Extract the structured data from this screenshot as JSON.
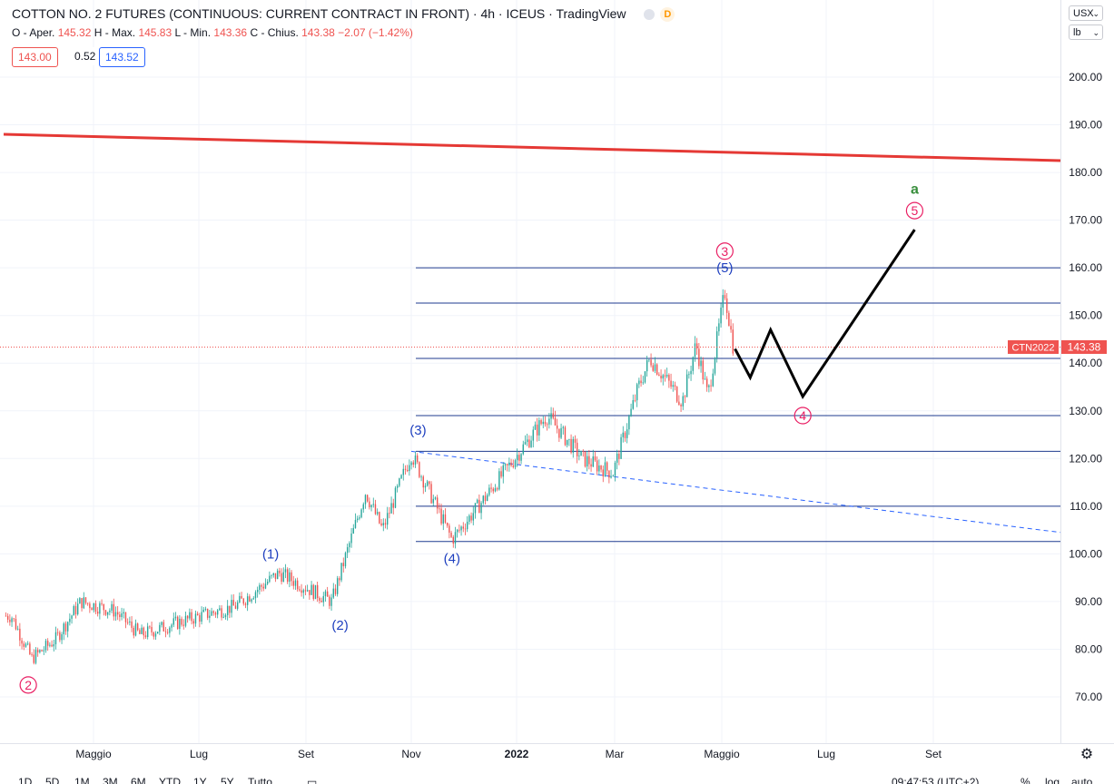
{
  "header": {
    "title": "COTTON NO. 2 FUTURES (CONTINUOUS: CURRENT CONTRACT IN FRONT)",
    "interval": "4h",
    "exchange": "ICEUS",
    "source": "TradingView",
    "badge": "D",
    "sep": "·"
  },
  "ohlc": {
    "o_label": "O - Aper.",
    "o": "145.32",
    "h_label": "H - Max.",
    "h": "145.83",
    "l_label": "L - Min.",
    "l": "143.36",
    "c_label": "C - Chius.",
    "c": "143.38",
    "change": "−2.07 (−1.42%)"
  },
  "quote": {
    "bid": "143.00",
    "spread": "0.52",
    "ask": "143.52"
  },
  "selectors": {
    "currency": "USX",
    "unit": "lb"
  },
  "price_axis": {
    "ticks": [
      "200.00",
      "190.00",
      "180.00",
      "170.00",
      "160.00",
      "150.00",
      "140.00",
      "130.00",
      "120.00",
      "110.00",
      "100.00",
      "90.00",
      "80.00",
      "70.00"
    ]
  },
  "price_label": {
    "symbol": "CTN2022",
    "value": "143.38"
  },
  "time_axis": {
    "ticks": [
      "Maggio",
      "Lug",
      "Set",
      "Nov",
      "2022",
      "Mar",
      "Maggio",
      "Lug",
      "Set"
    ]
  },
  "bottom_bar": {
    "ranges": [
      "1D",
      "5D",
      "1M",
      "3M",
      "6M",
      "YTD",
      "1Y",
      "5Y",
      "Tutto"
    ],
    "clock": "09:47:53 (UTC+2)",
    "pct": "%",
    "log": "log",
    "auto": "auto"
  },
  "colors": {
    "up": "#26a69a",
    "down": "#ef5350",
    "wave_blue": "#1e3fbf",
    "wave_pink": "#e91e63",
    "wave_green": "#388e3c",
    "ma": "#e53935",
    "fib": "#1f3b8f"
  },
  "chart_data": {
    "type": "candlestick",
    "ylim": [
      60,
      210
    ],
    "price_axis_scale": "linear",
    "grid": true,
    "last_price": 143.38,
    "key_points": [
      {
        "date": "2021-03-10",
        "price": 87
      },
      {
        "date": "2021-03-22",
        "price": 78
      },
      {
        "date": "2021-04-05",
        "price": 82
      },
      {
        "date": "2021-04-20",
        "price": 90
      },
      {
        "date": "2021-05-10",
        "price": 88
      },
      {
        "date": "2021-05-25",
        "price": 83
      },
      {
        "date": "2021-06-20",
        "price": 86
      },
      {
        "date": "2021-07-20",
        "price": 89
      },
      {
        "date": "2021-08-15",
        "price": 96
      },
      {
        "date": "2021-09-15",
        "price": 90
      },
      {
        "date": "2021-10-05",
        "price": 113
      },
      {
        "date": "2021-10-15",
        "price": 105
      },
      {
        "date": "2021-11-01",
        "price": 121
      },
      {
        "date": "2021-11-25",
        "price": 103
      },
      {
        "date": "2021-12-15",
        "price": 112
      },
      {
        "date": "2022-01-20",
        "price": 129
      },
      {
        "date": "2022-02-10",
        "price": 120
      },
      {
        "date": "2022-02-28",
        "price": 117
      },
      {
        "date": "2022-03-15",
        "price": 135
      },
      {
        "date": "2022-03-22",
        "price": 141
      },
      {
        "date": "2022-04-10",
        "price": 132
      },
      {
        "date": "2022-04-18",
        "price": 144
      },
      {
        "date": "2022-04-25",
        "price": 133
      },
      {
        "date": "2022-05-05",
        "price": 155
      },
      {
        "date": "2022-05-10",
        "price": 143.38
      }
    ],
    "horizontal_levels": [
      160,
      152.6,
      141,
      129,
      121.5,
      110,
      102.6
    ],
    "moving_average": {
      "start_price": 188,
      "end_price": 182.5
    },
    "trendline": {
      "start": {
        "date": "2021-11-01",
        "price": 121.5
      },
      "end": {
        "date": "2022-09-01",
        "price": 104.5
      }
    },
    "projection": [
      {
        "date": "2022-05-11",
        "price": 143
      },
      {
        "date": "2022-05-20",
        "price": 137
      },
      {
        "date": "2022-06-01",
        "price": 147
      },
      {
        "date": "2022-06-20",
        "price": 133
      },
      {
        "date": "2022-08-25",
        "price": 168
      }
    ],
    "wave_labels": [
      {
        "text": "2",
        "style": "circled",
        "color": "pink",
        "date": "2021-03-20",
        "price": 72.5
      },
      {
        "text": "(1)",
        "style": "paren",
        "color": "blue",
        "date": "2021-08-10",
        "price": 100
      },
      {
        "text": "(2)",
        "style": "paren",
        "color": "blue",
        "date": "2021-09-20",
        "price": 85
      },
      {
        "text": "(3)",
        "style": "paren",
        "color": "blue",
        "date": "2021-11-05",
        "price": 126
      },
      {
        "text": "(4)",
        "style": "paren",
        "color": "blue",
        "date": "2021-11-25",
        "price": 99
      },
      {
        "text": "3",
        "style": "circled",
        "color": "pink",
        "date": "2022-05-05",
        "price": 163.5
      },
      {
        "text": "(5)",
        "style": "paren",
        "color": "blue",
        "date": "2022-05-05",
        "price": 160
      },
      {
        "text": "4",
        "style": "circled",
        "color": "pink",
        "date": "2022-06-20",
        "price": 129
      },
      {
        "text": "5",
        "style": "circled",
        "color": "pink",
        "date": "2022-08-25",
        "price": 172
      },
      {
        "text": "a",
        "style": "plain",
        "color": "green",
        "date": "2022-08-25",
        "price": 176.5
      }
    ]
  }
}
